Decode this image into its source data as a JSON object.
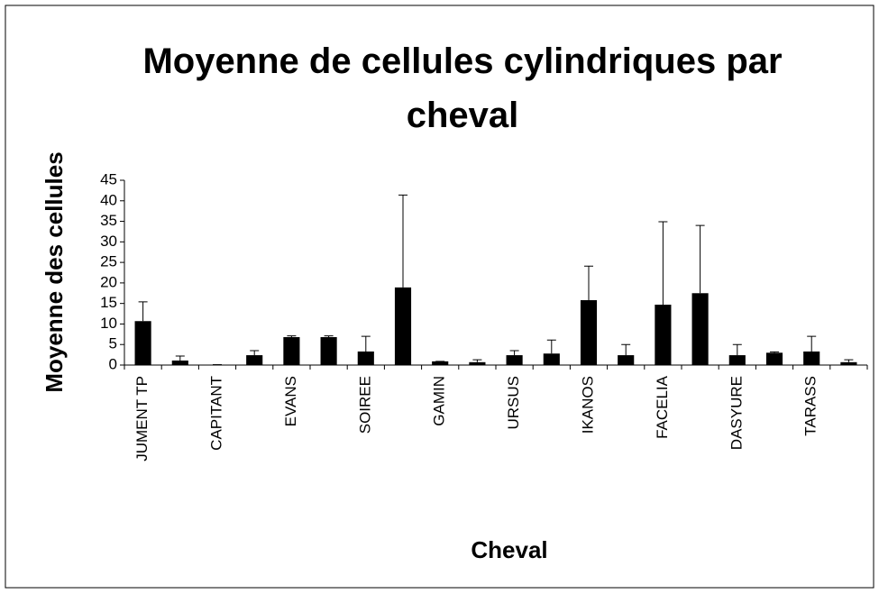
{
  "chart_data": {
    "type": "bar",
    "title": "Moyenne de cellules cylindriques par cheval",
    "x_label": "Cheval",
    "y_label": "Moyenne des cellules",
    "categories": [
      "JUMENT TP",
      null,
      "CAPITANT",
      null,
      "EVANS",
      null,
      "SOIREE",
      null,
      "GAMIN",
      null,
      "URSUS",
      null,
      "IKANOS",
      null,
      "FACELIA",
      null,
      "DASYURE",
      null,
      "TARASS",
      null
    ],
    "values": [
      10.7,
      1.1,
      0.1,
      2.4,
      6.8,
      6.8,
      3.3,
      18.9,
      0.9,
      0.7,
      2.4,
      2.8,
      15.8,
      2.4,
      14.7,
      17.5,
      2.4,
      3.0,
      3.3,
      0.7
    ],
    "errors": [
      4.7,
      1.1,
      0,
      1.1,
      0.3,
      0.3,
      3.7,
      22.5,
      0,
      0.6,
      1.1,
      3.3,
      8.3,
      2.6,
      20.2,
      16.5,
      2.6,
      0.2,
      3.7,
      0.6
    ],
    "color": "#000000",
    "ylim": [
      0,
      45
    ],
    "yticks": [
      0,
      5,
      10,
      15,
      20,
      25,
      30,
      35,
      40,
      45
    ],
    "grid": false
  }
}
